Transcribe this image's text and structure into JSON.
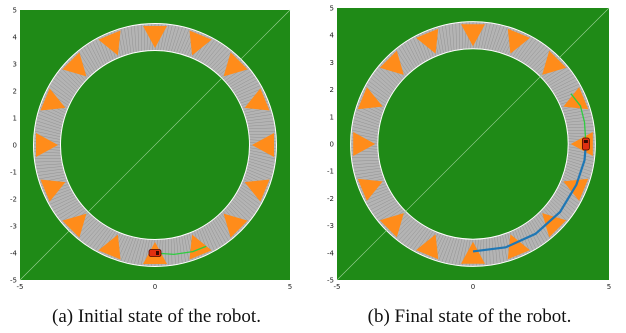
{
  "axes": {
    "xlim": [
      -5,
      5
    ],
    "ylim": [
      -5,
      5
    ],
    "x_tick_labels": [
      "-5",
      "0",
      "5"
    ],
    "y_tick_labels": [
      "5",
      "4",
      "3",
      "2",
      "1",
      "0",
      "-1",
      "-2",
      "-3",
      "-4",
      "-5"
    ]
  },
  "colors": {
    "background": "#1f8a17",
    "ring": "#b4b4b4",
    "ring_edge": "#ffffff",
    "arrow": "#ff8c1a",
    "robot": "#e03010",
    "trajectory": "#1f77b4",
    "planned_path": "#2ecc40"
  },
  "track": {
    "inner_radius": 3.5,
    "outer_radius": 4.5
  },
  "arrows": {
    "radius": 4.0,
    "count": 16,
    "orientation": "pointing toward track center"
  },
  "panels": [
    {
      "id": "a",
      "caption": "(a) Initial state of the robot.",
      "robot": {
        "x": 0.0,
        "y": -4.0,
        "heading_deg": 0
      },
      "trajectory": [],
      "planned_path": [
        [
          0.0,
          -4.0
        ],
        [
          0.7,
          -4.05
        ],
        [
          1.4,
          -3.95
        ],
        [
          1.9,
          -3.75
        ]
      ]
    },
    {
      "id": "b",
      "caption": "(b) Final state of the robot.",
      "robot": {
        "x": 4.15,
        "y": 0.0,
        "heading_deg": 90
      },
      "trajectory": [
        [
          0.0,
          -3.95
        ],
        [
          1.2,
          -3.8
        ],
        [
          2.3,
          -3.3
        ],
        [
          3.2,
          -2.5
        ],
        [
          3.8,
          -1.5
        ],
        [
          4.1,
          -0.6
        ],
        [
          4.15,
          0.0
        ]
      ],
      "planned_path": [
        [
          4.15,
          0.0
        ],
        [
          4.1,
          0.8
        ],
        [
          3.95,
          1.4
        ],
        [
          3.6,
          1.85
        ]
      ]
    }
  ]
}
